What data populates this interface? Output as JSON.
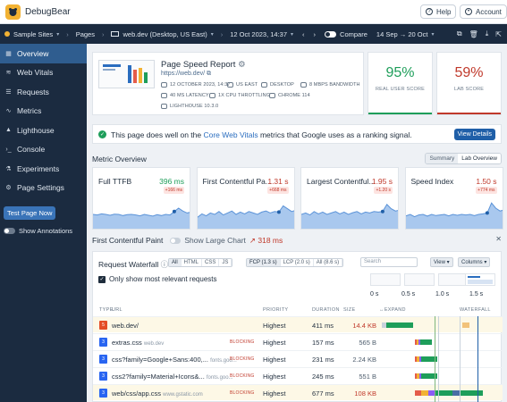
{
  "header": {
    "brand": "DebugBear",
    "help": "Help",
    "account": "Account"
  },
  "nav": {
    "site": "Sample Sites",
    "pages": "Pages",
    "page": "web.dev (Desktop, US East)",
    "date": "12 Oct 2023, 14:37",
    "compare": "Compare",
    "range": "14 Sep → 20 Oct"
  },
  "sidebar": {
    "items": [
      {
        "label": "Overview",
        "icon": "overview-icon",
        "active": true
      },
      {
        "label": "Web Vitals",
        "icon": "web-vitals-icon"
      },
      {
        "label": "Requests",
        "icon": "requests-icon"
      },
      {
        "label": "Metrics",
        "icon": "metrics-icon"
      },
      {
        "label": "Lighthouse",
        "icon": "lighthouse-icon"
      },
      {
        "label": "Console",
        "icon": "console-icon"
      },
      {
        "label": "Experiments",
        "icon": "experiments-icon"
      },
      {
        "label": "Page Settings",
        "icon": "settings-icon"
      }
    ],
    "test_button": "Test Page Now",
    "annotations": "Show Annotations"
  },
  "report": {
    "title": "Page Speed Report",
    "url": "https://web.dev/",
    "meta": [
      "12 OCTOBER 2023, 14:37",
      "US EAST",
      "DESKTOP",
      "8 MBPS BANDWIDTH",
      "40 MS LATENCY",
      "1X CPU THROTTLING",
      "CHROME 114",
      "LIGHTHOUSE 10.3.0"
    ]
  },
  "scores": {
    "real_user": {
      "value": "95%",
      "label": "REAL USER SCORE",
      "color": "#1e9e5a"
    },
    "lab": {
      "value": "59%",
      "label": "LAB SCORE",
      "color": "#c0392b"
    }
  },
  "vitals_message": {
    "prefix": "This page does well on the ",
    "link": "Core Web Vitals",
    "suffix": " metrics that Google uses as a ranking signal.",
    "button": "View Details"
  },
  "overview": {
    "title": "Metric Overview",
    "tabs": [
      "Summary",
      "Lab Overview"
    ]
  },
  "metrics": [
    {
      "name": "Full TTFB",
      "value": "396 ms",
      "delta": "+166 ms",
      "color": "#1e9e5a",
      "trend": [
        0.5,
        0.48,
        0.52,
        0.5,
        0.47,
        0.51,
        0.5,
        0.46,
        0.49,
        0.5,
        0.48,
        0.45,
        0.5,
        0.47,
        0.44,
        0.49,
        0.46,
        0.5,
        0.48,
        0.6,
        0.72,
        0.62,
        0.55,
        0.58
      ]
    },
    {
      "name": "First Contentful Pa...",
      "value": "1.31 s",
      "delta": "+668 ms",
      "color": "#c0392b",
      "trend": [
        0.4,
        0.52,
        0.45,
        0.55,
        0.5,
        0.6,
        0.48,
        0.55,
        0.62,
        0.5,
        0.58,
        0.52,
        0.6,
        0.55,
        0.5,
        0.58,
        0.62,
        0.55,
        0.6,
        0.58,
        0.8,
        0.7,
        0.6,
        0.65
      ]
    },
    {
      "name": "Largest Contentful...",
      "value": "1.95 s",
      "delta": "+1.20 s",
      "color": "#c0392b",
      "trend": [
        0.5,
        0.55,
        0.48,
        0.6,
        0.52,
        0.58,
        0.5,
        0.55,
        0.6,
        0.52,
        0.58,
        0.5,
        0.56,
        0.6,
        0.52,
        0.58,
        0.55,
        0.6,
        0.58,
        0.6,
        0.85,
        0.7,
        0.62,
        0.65
      ]
    },
    {
      "name": "Speed Index",
      "value": "1.50 s",
      "delta": "+774 ms",
      "color": "#c0392b",
      "trend": [
        0.45,
        0.5,
        0.42,
        0.48,
        0.5,
        0.44,
        0.5,
        0.46,
        0.48,
        0.5,
        0.45,
        0.5,
        0.47,
        0.5,
        0.48,
        0.5,
        0.46,
        0.5,
        0.52,
        0.55,
        0.9,
        0.72,
        0.62,
        0.66
      ]
    }
  ],
  "fcp": {
    "title": "First Contentful Paint",
    "toggle": "Show Large Chart",
    "delta": "↗ 318 ms"
  },
  "waterfall": {
    "title": "Request Waterfall",
    "types": [
      "All",
      "HTML",
      "CSS",
      "JS"
    ],
    "timings": [
      "FCP (1.3 s)",
      "LCP (2.0 s)",
      "All (8.6 s)"
    ],
    "search_placeholder": "Search",
    "view": "View",
    "columns": "Columns",
    "only_relevant": "Only show most relevant requests",
    "ticks": [
      "0 s",
      "0.5 s",
      "1.0 s",
      "1.5 s"
    ],
    "headers": {
      "type": "TYPE",
      "url": "URL",
      "priority": "PRIORITY",
      "duration": "DURATION",
      "size": "SIZE",
      "expand": "EXPAND",
      "waterfall": "WATERFALL"
    },
    "rows": [
      {
        "type": "html",
        "url": "web.dev/",
        "domain": "",
        "blocking": "",
        "priority": "Highest",
        "duration": "411 ms",
        "size": "14.4 KB",
        "highlight": true,
        "start": 0.02,
        "len": 0.27
      },
      {
        "type": "css",
        "url": "extras.css",
        "domain": "web.dev",
        "blocking": "BLOCKING",
        "priority": "Highest",
        "duration": "157 ms",
        "size": "565 B",
        "highlight": false,
        "start": 0.3,
        "len": 0.15
      },
      {
        "type": "css",
        "url": "css?family=Google+Sans:400,...",
        "domain": "fonts.goo...",
        "blocking": "BLOCKING",
        "priority": "Highest",
        "duration": "231 ms",
        "size": "2.24 KB",
        "highlight": false,
        "start": 0.3,
        "len": 0.19
      },
      {
        "type": "css",
        "url": "css2?family=Material+Icons&...",
        "domain": "fonts.goo...",
        "blocking": "BLOCKING",
        "priority": "Highest",
        "duration": "245 ms",
        "size": "551 B",
        "highlight": false,
        "start": 0.3,
        "len": 0.19
      },
      {
        "type": "css",
        "url": "web/css/app.css",
        "domain": "www.gstatic.com",
        "blocking": "BLOCKING",
        "priority": "Highest",
        "duration": "677 ms",
        "size": "108 KB",
        "highlight": true,
        "start": 0.3,
        "len": 0.58
      }
    ]
  }
}
